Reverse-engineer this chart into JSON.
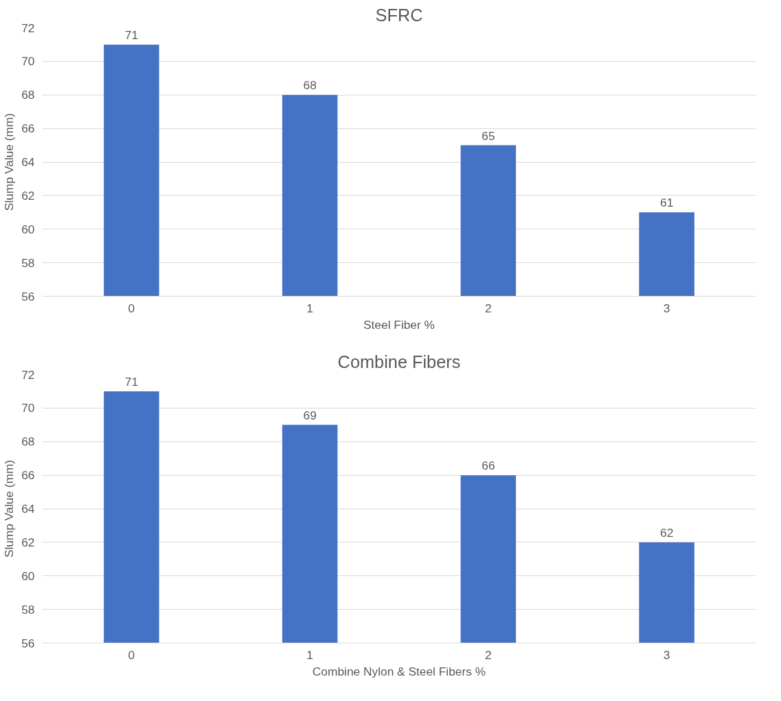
{
  "chart_data": [
    {
      "type": "bar",
      "title": "SFRC",
      "xlabel": "Steel Fiber %",
      "ylabel": "Slump Value (mm)",
      "categories": [
        "0",
        "1",
        "2",
        "3"
      ],
      "values": [
        71,
        68,
        65,
        61
      ],
      "color": "#4472c4",
      "ylim": [
        56,
        72
      ],
      "yticks": [
        56,
        58,
        60,
        62,
        64,
        66,
        68,
        70,
        72
      ],
      "grid": "y",
      "data_labels": true
    },
    {
      "type": "bar",
      "title": "Combine Fibers",
      "xlabel": "Combine Nylon & Steel Fibers %",
      "ylabel": "Slump Value (mm)",
      "categories": [
        "0",
        "1",
        "2",
        "3"
      ],
      "values": [
        71,
        69,
        66,
        62
      ],
      "color": "#4472c4",
      "ylim": [
        56,
        72
      ],
      "yticks": [
        56,
        58,
        60,
        62,
        64,
        66,
        68,
        70,
        72
      ],
      "grid": "y",
      "data_labels": true
    }
  ]
}
